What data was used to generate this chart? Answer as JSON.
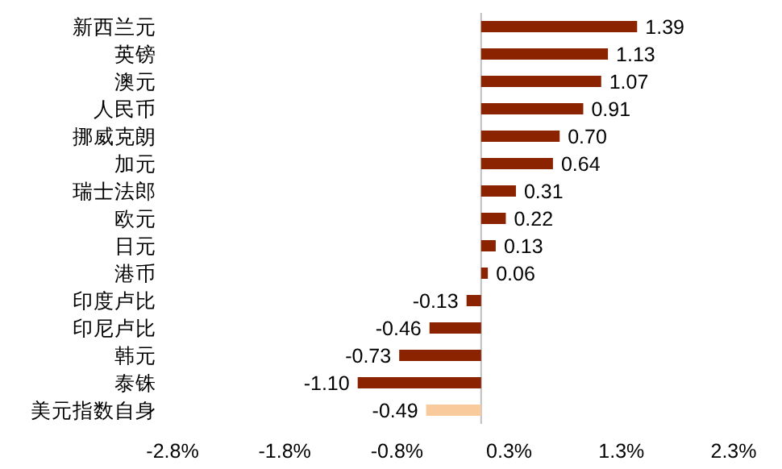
{
  "chart_data": {
    "type": "bar",
    "orientation": "horizontal",
    "value_labels": [
      "1.39",
      "1.13",
      "1.07",
      "0.91",
      "0.70",
      "0.64",
      "0.31",
      "0.22",
      "0.13",
      "0.06",
      "-0.13",
      "-0.46",
      "-0.73",
      "-1.10",
      "-0.49"
    ],
    "categories": [
      "新西兰元",
      "英镑",
      "澳元",
      "人民币",
      "挪威克朗",
      "加元",
      "瑞士法郎",
      "欧元",
      "日元",
      "港币",
      "印度卢比",
      "印尼卢比",
      "韩元",
      "泰铢",
      "美元指数自身"
    ],
    "values": [
      1.39,
      1.13,
      1.07,
      0.91,
      0.7,
      0.64,
      0.31,
      0.22,
      0.13,
      0.06,
      -0.13,
      -0.46,
      -0.73,
      -1.1,
      -0.49
    ],
    "colors": [
      "#8b2200",
      "#8b2200",
      "#8b2200",
      "#8b2200",
      "#8b2200",
      "#8b2200",
      "#8b2200",
      "#8b2200",
      "#8b2200",
      "#8b2200",
      "#8b2200",
      "#8b2200",
      "#8b2200",
      "#8b2200",
      "#f9cb9c"
    ],
    "xlim": [
      -2.75,
      2.25
    ],
    "xticks": [
      {
        "value": -2.75,
        "label": "-2.8%"
      },
      {
        "value": -1.75,
        "label": "-1.8%"
      },
      {
        "value": -0.75,
        "label": "-0.8%"
      },
      {
        "value": 0.25,
        "label": "0.3%"
      },
      {
        "value": 1.25,
        "label": "1.3%"
      },
      {
        "value": 2.25,
        "label": "2.3%"
      }
    ]
  }
}
